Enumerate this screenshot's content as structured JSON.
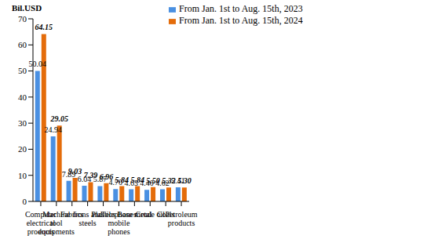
{
  "chart_data": {
    "type": "bar",
    "y_label": "Bil.USD",
    "categories": [
      "Computer electrical products",
      "Machine tool equipments",
      "Fabrics",
      "Irons and steels",
      "Plastics",
      "Telephones mobile phones",
      "Base metal",
      "Crude oil",
      "Coals",
      "Petroleum products"
    ],
    "series": [
      {
        "name": "From Jan. 1st to Aug. 15th, 2023",
        "color": "#4a90e2",
        "values": [
          50.04,
          24.94,
          7.89,
          6.04,
          5.87,
          4.7,
          4.63,
          4.4,
          4.62,
          5.41
        ],
        "value_labels": [
          "50.04",
          "24.94",
          "7.89",
          "6.04",
          "5.87",
          "4.70",
          "4.63",
          "4.40",
          "4.62",
          "5.41"
        ]
      },
      {
        "name": "From Jan. 1st to Aug. 15th, 2024",
        "color": "#e46c0a",
        "values": [
          64.15,
          29.05,
          9.03,
          7.39,
          6.96,
          5.84,
          5.84,
          5.5,
          5.32,
          5.3
        ],
        "value_labels": [
          "64.15",
          "29.05",
          "9.03",
          "7.39",
          "6.96",
          "5.84",
          "5.84",
          "5.50",
          "5.32",
          "5.30"
        ]
      }
    ],
    "ylim": [
      0,
      70
    ],
    "yticks": [
      0,
      10,
      20,
      30,
      40,
      50,
      60,
      70
    ],
    "grid": false,
    "legend": "top",
    "data_labels": true
  }
}
